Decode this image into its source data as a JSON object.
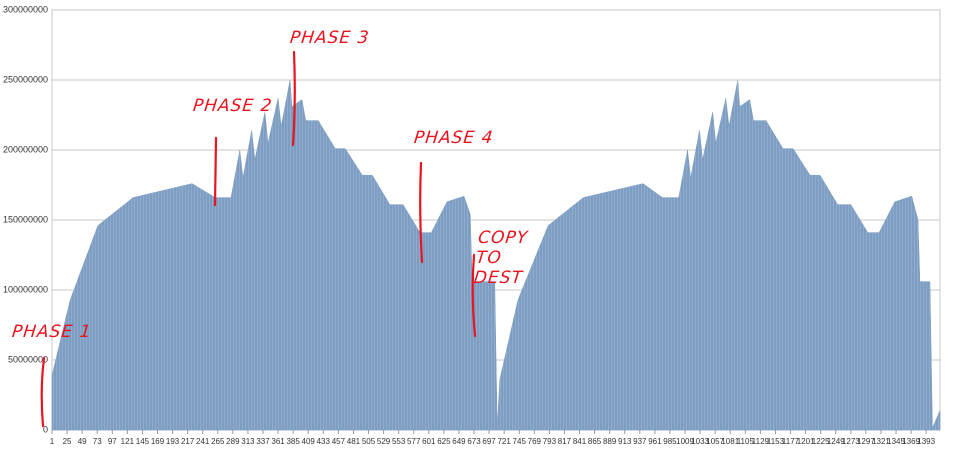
{
  "chart_data": {
    "type": "area",
    "color": "#7d9dc2",
    "grid": true,
    "x": [
      1,
      30,
      74,
      130,
      224,
      261,
      286,
      300,
      305,
      319,
      324,
      340,
      345,
      361,
      366,
      380,
      383,
      399,
      405,
      425,
      452,
      468,
      495,
      511,
      539,
      560,
      587,
      605,
      630,
      657,
      667,
      670,
      706,
      710,
      714,
      743,
      791,
      847,
      942,
      973,
      999,
      1013,
      1018,
      1032,
      1037,
      1053,
      1058,
      1074,
      1079,
      1093,
      1096,
      1112,
      1118,
      1138,
      1165,
      1181,
      1208,
      1224,
      1252,
      1273,
      1300,
      1318,
      1343,
      1370,
      1380,
      1383,
      1399,
      1403,
      1415
    ],
    "values": [
      39000000,
      93000000,
      146000000,
      166000000,
      176000000,
      166000000,
      166000000,
      200000000,
      180000000,
      214000000,
      193000000,
      227000000,
      205000000,
      237000000,
      217000000,
      250000000,
      231000000,
      236000000,
      221000000,
      221000000,
      201000000,
      201000000,
      182000000,
      182000000,
      161000000,
      161000000,
      141000000,
      141000000,
      163000000,
      167000000,
      154000000,
      106000000,
      106000000,
      1500000,
      36000000,
      93000000,
      146000000,
      166000000,
      176000000,
      166000000,
      166000000,
      200000000,
      180000000,
      214000000,
      193000000,
      227000000,
      205000000,
      237000000,
      217000000,
      250000000,
      231000000,
      236000000,
      221000000,
      221000000,
      201000000,
      201000000,
      182000000,
      182000000,
      161000000,
      161000000,
      141000000,
      141000000,
      163000000,
      167000000,
      150000000,
      106000000,
      106000000,
      1500000,
      14000000
    ],
    "xlim": [
      1,
      1415
    ],
    "xticks": [
      1,
      25,
      49,
      73,
      97,
      121,
      145,
      169,
      193,
      217,
      241,
      265,
      289,
      313,
      337,
      361,
      385,
      409,
      433,
      457,
      481,
      505,
      529,
      553,
      577,
      601,
      625,
      649,
      673,
      697,
      721,
      745,
      769,
      793,
      817,
      841,
      865,
      889,
      913,
      937,
      961,
      985,
      1009,
      1033,
      1057,
      1081,
      1105,
      1129,
      1153,
      1177,
      1201,
      1225,
      1249,
      1273,
      1297,
      1321,
      1345,
      1369,
      1393
    ],
    "ylim": [
      0,
      300000000
    ],
    "yticks": [
      0,
      50000000,
      100000000,
      150000000,
      200000000,
      250000000,
      300000000
    ],
    "annotations": [
      "PHASE 1",
      "PHASE 2",
      "PHASE 3",
      "PHASE 4",
      "COPY TO DEST"
    ]
  }
}
